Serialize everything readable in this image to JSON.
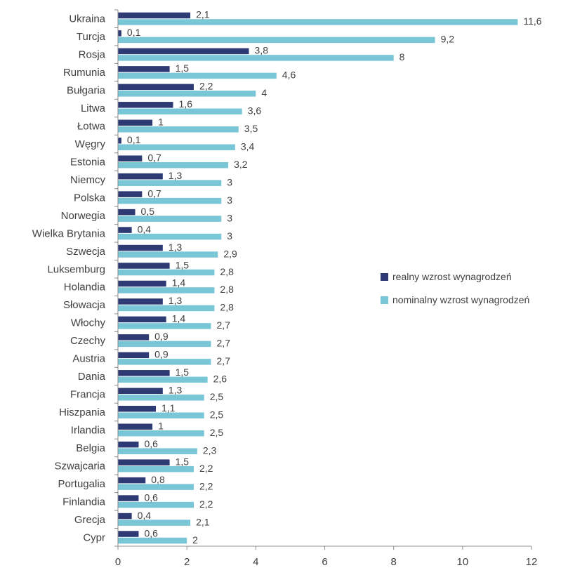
{
  "chart_data": {
    "type": "bar",
    "orientation": "horizontal",
    "categories": [
      "Ukraina",
      "Turcja",
      "Rosja",
      "Rumunia",
      "Bułgaria",
      "Litwa",
      "Łotwa",
      "Węgry",
      "Estonia",
      "Niemcy",
      "Polska",
      "Norwegia",
      "Wielka Brytania",
      "Szwecja",
      "Luksemburg",
      "Holandia",
      "Słowacja",
      "Włochy",
      "Czechy",
      "Austria",
      "Dania",
      "Francja",
      "Hiszpania",
      "Irlandia",
      "Belgia",
      "Szwajcaria",
      "Portugalia",
      "Finlandia",
      "Grecja",
      "Cypr"
    ],
    "series": [
      {
        "name": "realny wzrost wynagrodzeń",
        "color": "#2E3A74",
        "values": [
          2.1,
          0.1,
          3.8,
          1.5,
          2.2,
          1.6,
          1,
          0.1,
          0.7,
          1.3,
          0.7,
          0.5,
          0.4,
          1.3,
          1.5,
          1.4,
          1.3,
          1.4,
          0.9,
          0.9,
          1.5,
          1.3,
          1.1,
          1,
          0.6,
          1.5,
          0.8,
          0.6,
          0.4,
          0.6
        ],
        "labels": [
          "2,1",
          "0,1",
          "3,8",
          "1,5",
          "2,2",
          "1,6",
          "1",
          "0,1",
          "0,7",
          "1,3",
          "0,7",
          "0,5",
          "0,4",
          "1,3",
          "1,5",
          "1,4",
          "1,3",
          "1,4",
          "0,9",
          "0,9",
          "1,5",
          "1,3",
          "1,1",
          "1",
          "0,6",
          "1,5",
          "0,8",
          "0,6",
          "0,4",
          "0,6"
        ]
      },
      {
        "name": "nominalny wzrost wynagrodzeń",
        "color": "#78C6D6",
        "values": [
          11.6,
          9.2,
          8,
          4.6,
          4,
          3.6,
          3.5,
          3.4,
          3.2,
          3,
          3,
          3,
          3,
          2.9,
          2.8,
          2.8,
          2.8,
          2.7,
          2.7,
          2.7,
          2.6,
          2.5,
          2.5,
          2.5,
          2.3,
          2.2,
          2.2,
          2.2,
          2.1,
          2
        ],
        "labels": [
          "11,6",
          "9,2",
          "8",
          "4,6",
          "4",
          "3,6",
          "3,5",
          "3,4",
          "3,2",
          "3",
          "3",
          "3",
          "3",
          "2,9",
          "2,8",
          "2,8",
          "2,8",
          "2,7",
          "2,7",
          "2,7",
          "2,6",
          "2,5",
          "2,5",
          "2,5",
          "2,3",
          "2,2",
          "2,2",
          "2,2",
          "2,1",
          "2"
        ]
      }
    ],
    "xlim": [
      0,
      12
    ],
    "xticks": [
      "0",
      "2",
      "4",
      "6",
      "8",
      "10",
      "12"
    ],
    "title": "",
    "xlabel": "",
    "ylabel": "",
    "legend": "right",
    "grid": false,
    "axis_color": "#8C8C8C"
  }
}
